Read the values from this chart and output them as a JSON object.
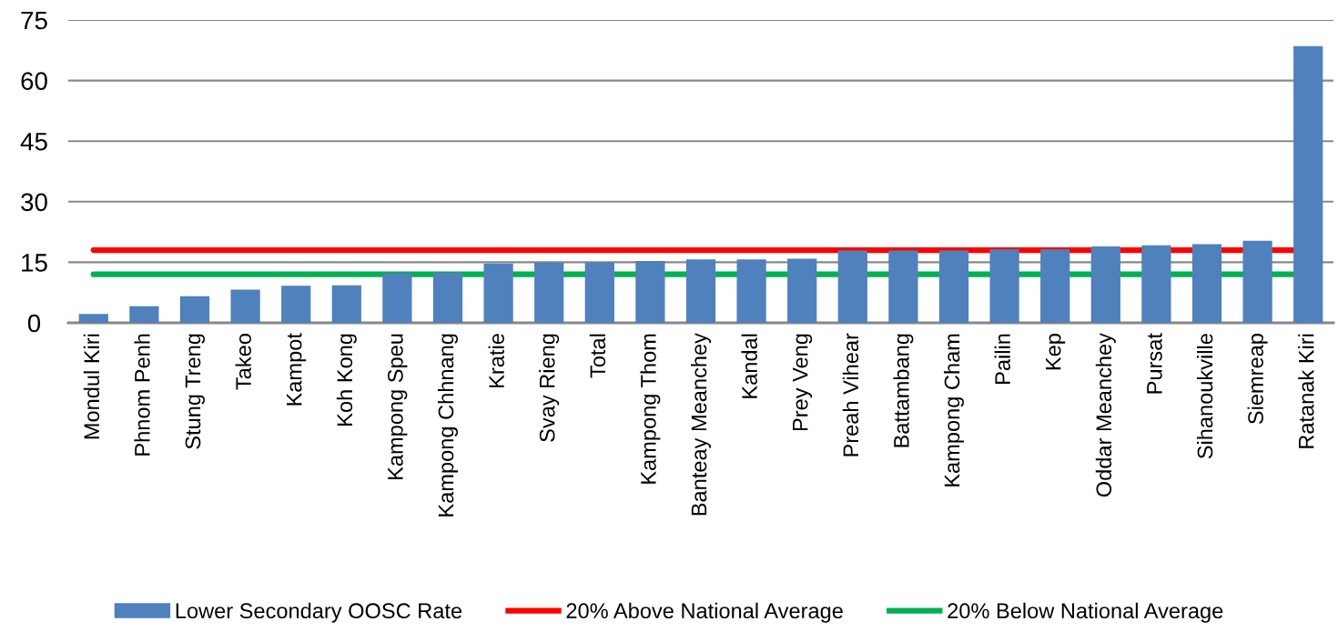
{
  "chart_data": {
    "type": "bar",
    "categories": [
      "Mondul Kiri",
      "Phnom Penh",
      "Stung Treng",
      "Takeo",
      "Kampot",
      "Koh Kong",
      "Kampong Speu",
      "Kampong Chhnang",
      "Kratie",
      "Svay Rieng",
      "Total",
      "Kampong Thom",
      "Banteay Meanchey",
      "Kandal",
      "Prey Veng",
      "Preah Vihear",
      "Battambang",
      "Kampong Cham",
      "Pailin",
      "Kep",
      "Oddar Meanchey",
      "Pursat",
      "Sihanoukville",
      "Siemreap",
      "Ratanak Kiri"
    ],
    "series": [
      {
        "name": "Lower Secondary OOSC Rate",
        "color": "#4f81bd",
        "values": [
          2.2,
          4.1,
          6.6,
          8.2,
          9.2,
          9.3,
          12.3,
          12.4,
          14.7,
          14.9,
          15.0,
          15.3,
          15.7,
          15.7,
          15.9,
          17.9,
          17.9,
          17.9,
          18.2,
          18.2,
          18.9,
          19.2,
          19.5,
          20.3,
          68.5
        ]
      }
    ],
    "ref_lines": [
      {
        "axis": "y",
        "value": 18,
        "label": "20% Above National Average",
        "color": "#ff0000",
        "line_style": "solid"
      },
      {
        "axis": "y",
        "value": 12,
        "label": "20% Below National Average",
        "color": "#00b050",
        "line_style": "solid"
      }
    ],
    "ylim": [
      0,
      75
    ],
    "yticks": [
      0,
      15,
      30,
      45,
      60,
      75
    ],
    "grid": "y",
    "legend": "bottom"
  }
}
